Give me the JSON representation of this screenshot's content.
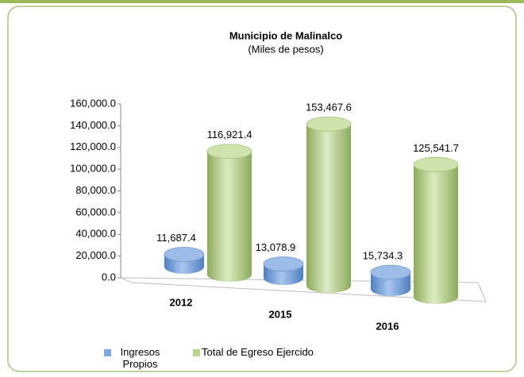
{
  "chart_data": {
    "type": "bar3d",
    "title": "Municipio de Malinalco",
    "subtitle": "(Miles de pesos)",
    "categories": [
      "2012",
      "2015",
      "2016"
    ],
    "series": [
      {
        "name": "Ingresos Propios",
        "color": "#7ea6dc",
        "values": [
          11687.4,
          13078.9,
          15734.3
        ],
        "value_labels": [
          "11,687.4",
          "13,078.9",
          "15,734.3"
        ]
      },
      {
        "name": "Total de Egreso Ejercido",
        "color": "#b9d48e",
        "values": [
          116921.4,
          153467.6,
          125541.7
        ],
        "value_labels": [
          "116,921.4",
          "153,467.6",
          "125,541.7"
        ]
      }
    ],
    "ylim": [
      0,
      160000
    ],
    "yticks": [
      {
        "value": 0,
        "label": "0.0"
      },
      {
        "value": 20000,
        "label": "20,000.0"
      },
      {
        "value": 40000,
        "label": "40,000.0"
      },
      {
        "value": 60000,
        "label": "60,000.0"
      },
      {
        "value": 80000,
        "label": "80,000.0"
      },
      {
        "value": 100000,
        "label": "100,000.0"
      },
      {
        "value": 120000,
        "label": "120,000.0"
      },
      {
        "value": 140000,
        "label": "140,000.0"
      },
      {
        "value": 160000,
        "label": "160,000.0"
      }
    ],
    "legend": "bottom"
  }
}
